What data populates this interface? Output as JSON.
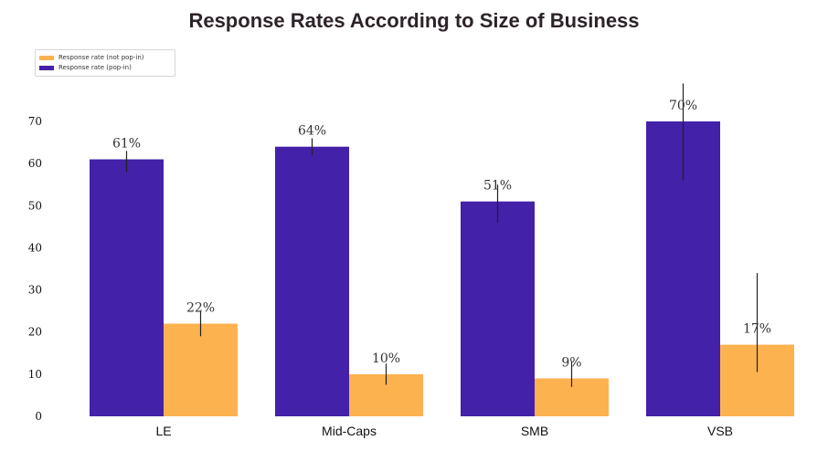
{
  "chart_data": {
    "type": "bar",
    "title": "Response Rates According to Size of Business",
    "xlabel": "",
    "ylabel": "",
    "ylim": [
      0,
      70
    ],
    "yticks": [
      0,
      10,
      20,
      30,
      40,
      50,
      60,
      70
    ],
    "categories": [
      "LE",
      "Mid-Caps",
      "SMB",
      "VSB"
    ],
    "series": [
      {
        "name": "Response rate (pop-in)",
        "color": "#4321a8",
        "values": [
          61,
          64,
          51,
          70
        ],
        "labels": [
          "61%",
          "64%",
          "51%",
          "70%"
        ],
        "error": [
          [
            58,
            63
          ],
          [
            62,
            66
          ],
          [
            46,
            55
          ],
          [
            56,
            79
          ]
        ]
      },
      {
        "name": "Response rate (not pop-in)",
        "color": "#fdb250",
        "values": [
          22,
          10,
          9,
          17
        ],
        "labels": [
          "22%",
          "10%",
          "9%",
          "17%"
        ],
        "error": [
          [
            19,
            25
          ],
          [
            7.5,
            12.5
          ],
          [
            7,
            13
          ],
          [
            10.5,
            34
          ]
        ]
      }
    ],
    "legend": {
      "position": "top-left",
      "entries": [
        {
          "label": "Response rate (not pop-in)",
          "color": "#fdb250"
        },
        {
          "label": "Response rate (pop-in)",
          "color": "#4321a8"
        }
      ]
    },
    "grid": false
  }
}
